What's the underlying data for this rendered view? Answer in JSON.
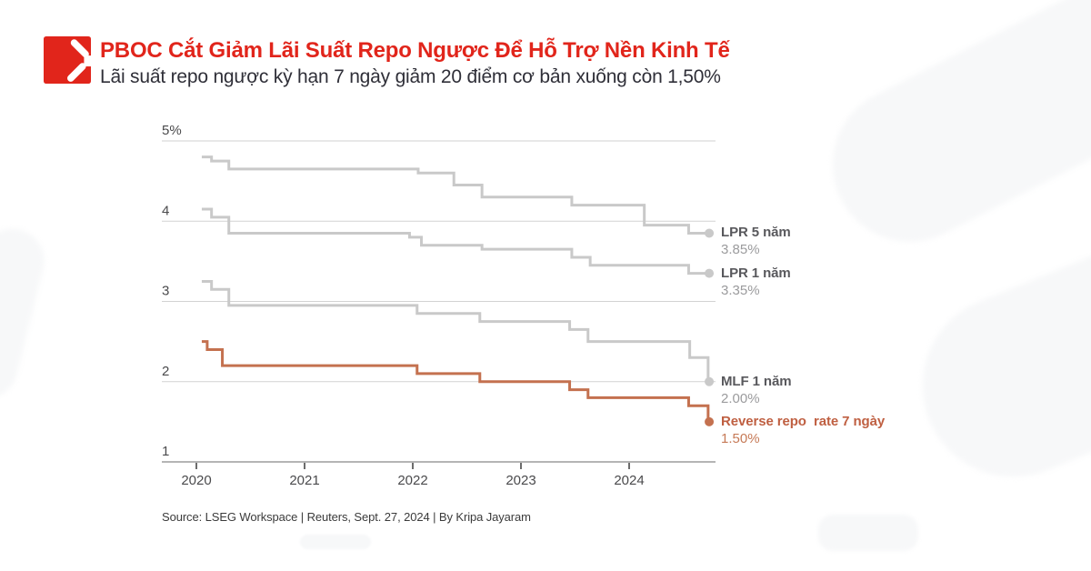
{
  "header": {
    "title": "PBOC Cắt Giảm Lãi Suất Repo Ngược Để Hỗ Trợ Nền Kinh Tế",
    "subtitle": "Lãi suất repo ngược kỳ hạn 7 ngày giảm 20 điểm cơ bản xuống còn 1,50%",
    "title_color": "#e1251b",
    "subtitle_color": "#2f2f38",
    "logo_color": "#e1251b"
  },
  "footer": {
    "source": "Source: LSEG Workspace | Reuters, Sept. 27, 2024 | By Kripa Jayaram",
    "source_color": "#3b3b3b"
  },
  "chart_data": {
    "type": "line",
    "step": true,
    "grid": "horizontal",
    "legend_position": "right",
    "x_range": [
      2019.68,
      2024.81
    ],
    "x_end": 2024.74,
    "x_ticks": [
      {
        "label": "2020",
        "year": 2020
      },
      {
        "label": "2021",
        "year": 2021
      },
      {
        "label": "2022",
        "year": 2022
      },
      {
        "label": "2023",
        "year": 2023
      },
      {
        "label": "2024",
        "year": 2024
      }
    ],
    "ylim": [
      1,
      5
    ],
    "y_ticks": [
      {
        "v": 5,
        "label": "5%"
      },
      {
        "v": 4,
        "label": "4"
      },
      {
        "v": 3,
        "label": "3"
      },
      {
        "v": 2,
        "label": "2"
      },
      {
        "v": 1,
        "label": "1"
      }
    ],
    "axis_color": "#b5b5b5",
    "grid_color": "#d2d2d2",
    "tick_color": "#3a3a3a",
    "tick_label_color": "#4a4a4c",
    "series": [
      {
        "name": "LPR 5 năm",
        "value_label": "3.85%",
        "color": "#c9c9c9",
        "label_color": "#58585c",
        "value_color": "#9b9b9d",
        "points": [
          [
            2020.05,
            4.8
          ],
          [
            2020.14,
            4.75
          ],
          [
            2020.3,
            4.65
          ],
          [
            2022.05,
            4.6
          ],
          [
            2022.38,
            4.45
          ],
          [
            2022.64,
            4.3
          ],
          [
            2023.47,
            4.2
          ],
          [
            2024.14,
            3.95
          ],
          [
            2024.55,
            3.85
          ]
        ]
      },
      {
        "name": "LPR 1 năm",
        "value_label": "3.35%",
        "color": "#c9c9c9",
        "label_color": "#58585c",
        "value_color": "#9b9b9d",
        "points": [
          [
            2020.05,
            4.15
          ],
          [
            2020.14,
            4.05
          ],
          [
            2020.3,
            3.85
          ],
          [
            2021.97,
            3.8
          ],
          [
            2022.08,
            3.7
          ],
          [
            2022.64,
            3.65
          ],
          [
            2023.47,
            3.55
          ],
          [
            2023.64,
            3.45
          ],
          [
            2024.55,
            3.35
          ]
        ]
      },
      {
        "name": "MLF 1 năm",
        "value_label": "2.00%",
        "color": "#c9c9c9",
        "label_color": "#58585c",
        "value_color": "#9b9b9d",
        "points": [
          [
            2020.05,
            3.25
          ],
          [
            2020.14,
            3.15
          ],
          [
            2020.3,
            2.95
          ],
          [
            2022.04,
            2.85
          ],
          [
            2022.62,
            2.75
          ],
          [
            2023.45,
            2.65
          ],
          [
            2023.62,
            2.5
          ],
          [
            2024.56,
            2.3
          ],
          [
            2024.73,
            2.0
          ]
        ]
      },
      {
        "name": "Reverse repo  rate 7 ngày",
        "value_label": "1.50%",
        "color": "#c4714f",
        "label_color": "#bf5f41",
        "value_color": "#c67a57",
        "points": [
          [
            2020.05,
            2.5
          ],
          [
            2020.1,
            2.4
          ],
          [
            2020.24,
            2.2
          ],
          [
            2022.04,
            2.1
          ],
          [
            2022.62,
            2.0
          ],
          [
            2023.45,
            1.9
          ],
          [
            2023.62,
            1.8
          ],
          [
            2024.55,
            1.7
          ],
          [
            2024.73,
            1.5
          ]
        ]
      }
    ]
  }
}
